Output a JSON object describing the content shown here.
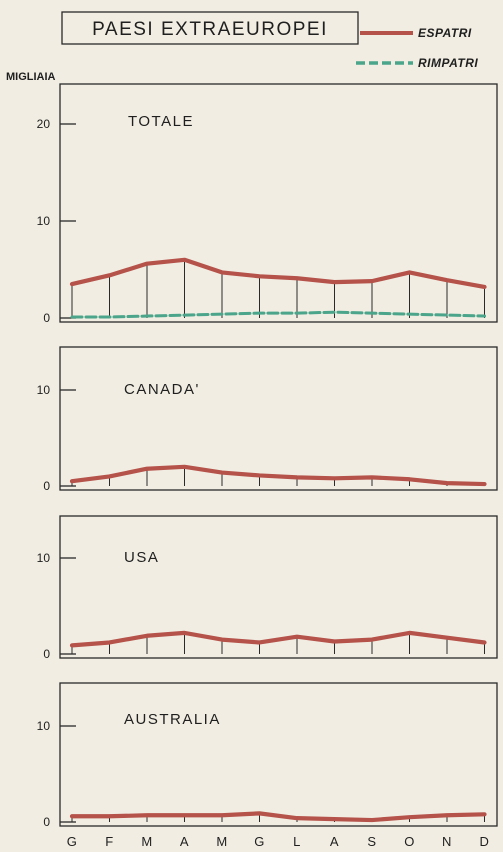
{
  "title": "PAESI EXTRAEUROPEI",
  "unit": "MIGLIAIA",
  "colors": {
    "espatri": "#b5524a",
    "rimpatri": "#4aa58a",
    "frame": "#2a2a2a"
  },
  "legend": [
    {
      "name": "ESPATRI",
      "style": "solid"
    },
    {
      "name": "RIMPATRI",
      "style": "dashed"
    }
  ],
  "months": [
    "G",
    "F",
    "M",
    "A",
    "M",
    "G",
    "L",
    "A",
    "S",
    "O",
    "N",
    "D"
  ],
  "chart_data": [
    {
      "type": "line",
      "title": "TOTALE",
      "ylim": [
        0,
        25
      ],
      "yticks": [
        0,
        10,
        20
      ],
      "categories": [
        "G",
        "F",
        "M",
        "A",
        "M",
        "G",
        "L",
        "A",
        "S",
        "O",
        "N",
        "D"
      ],
      "series": [
        {
          "name": "ESPATRI",
          "values": [
            3.5,
            4.4,
            5.6,
            6.0,
            4.7,
            4.3,
            4.1,
            3.7,
            3.8,
            4.7,
            3.9,
            3.2
          ]
        },
        {
          "name": "RIMPATRI",
          "values": [
            0.1,
            0.1,
            0.2,
            0.3,
            0.4,
            0.5,
            0.5,
            0.6,
            0.5,
            0.4,
            0.3,
            0.2
          ]
        }
      ]
    },
    {
      "type": "line",
      "title": "CANADA'",
      "ylim": [
        0,
        15
      ],
      "yticks": [
        0,
        10
      ],
      "categories": [
        "G",
        "F",
        "M",
        "A",
        "M",
        "G",
        "L",
        "A",
        "S",
        "O",
        "N",
        "D"
      ],
      "series": [
        {
          "name": "ESPATRI",
          "values": [
            0.5,
            1.0,
            1.8,
            2.0,
            1.4,
            1.1,
            0.9,
            0.8,
            0.9,
            0.7,
            0.3,
            0.2
          ]
        }
      ]
    },
    {
      "type": "line",
      "title": "USA",
      "ylim": [
        0,
        15
      ],
      "yticks": [
        0,
        10
      ],
      "categories": [
        "G",
        "F",
        "M",
        "A",
        "M",
        "G",
        "L",
        "A",
        "S",
        "O",
        "N",
        "D"
      ],
      "series": [
        {
          "name": "ESPATRI",
          "values": [
            0.9,
            1.2,
            1.9,
            2.2,
            1.5,
            1.2,
            1.8,
            1.3,
            1.5,
            2.2,
            1.7,
            1.2
          ]
        }
      ]
    },
    {
      "type": "line",
      "title": "AUSTRALIA",
      "ylim": [
        0,
        15
      ],
      "yticks": [
        0,
        10
      ],
      "categories": [
        "G",
        "F",
        "M",
        "A",
        "M",
        "G",
        "L",
        "A",
        "S",
        "O",
        "N",
        "D"
      ],
      "series": [
        {
          "name": "ESPATRI",
          "values": [
            0.6,
            0.6,
            0.7,
            0.7,
            0.7,
            0.9,
            0.4,
            0.3,
            0.2,
            0.5,
            0.7,
            0.8
          ]
        }
      ]
    }
  ]
}
